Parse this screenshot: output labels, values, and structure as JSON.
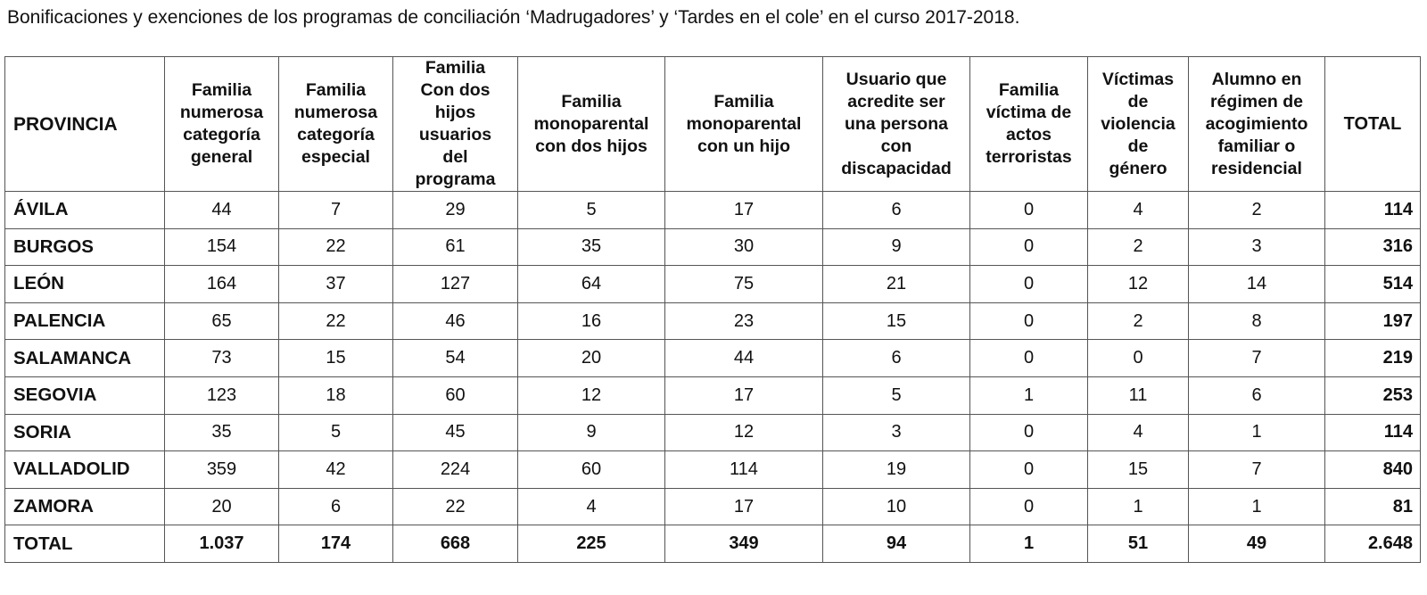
{
  "caption": "Bonificaciones y exenciones de los programas de conciliación ‘Madrugadores’ y ‘Tardes en el cole’ en el curso 2017-2018.",
  "table": {
    "headers": [
      [
        "PROVINCIA"
      ],
      [
        "Familia",
        "numerosa",
        "categoría",
        "general"
      ],
      [
        "Familia",
        "numerosa",
        "categoría",
        "especial"
      ],
      [
        "Familia",
        "Con dos",
        "hijos",
        "usuarios",
        "del",
        "programa"
      ],
      [
        "Familia",
        "monoparental",
        "con dos hijos"
      ],
      [
        "Familia",
        "monoparental",
        "con un hijo"
      ],
      [
        "Usuario que",
        "acredite ser",
        "una persona",
        "con",
        "discapacidad"
      ],
      [
        "Familia",
        "víctima de",
        "actos",
        "terroristas"
      ],
      [
        "Víctimas",
        "de",
        "violencia",
        "de",
        "género"
      ],
      [
        "Alumno en",
        "régimen de",
        "acogimiento",
        "familiar o",
        "residencial"
      ],
      [
        "TOTAL"
      ]
    ],
    "rows": [
      {
        "provincia": "ÁVILA",
        "values": [
          "44",
          "7",
          "29",
          "5",
          "17",
          "6",
          "0",
          "4",
          "2"
        ],
        "total": "114"
      },
      {
        "provincia": "BURGOS",
        "values": [
          "154",
          "22",
          "61",
          "35",
          "30",
          "9",
          "0",
          "2",
          "3"
        ],
        "total": "316"
      },
      {
        "provincia": "LEÓN",
        "values": [
          "164",
          "37",
          "127",
          "64",
          "75",
          "21",
          "0",
          "12",
          "14"
        ],
        "total": "514"
      },
      {
        "provincia": "PALENCIA",
        "values": [
          "65",
          "22",
          "46",
          "16",
          "23",
          "15",
          "0",
          "2",
          "8"
        ],
        "total": "197"
      },
      {
        "provincia": "SALAMANCA",
        "values": [
          "73",
          "15",
          "54",
          "20",
          "44",
          "6",
          "0",
          "0",
          "7"
        ],
        "total": "219"
      },
      {
        "provincia": "SEGOVIA",
        "values": [
          "123",
          "18",
          "60",
          "12",
          "17",
          "5",
          "1",
          "11",
          "6"
        ],
        "total": "253"
      },
      {
        "provincia": "SORIA",
        "values": [
          "35",
          "5",
          "45",
          "9",
          "12",
          "3",
          "0",
          "4",
          "1"
        ],
        "total": "114"
      },
      {
        "provincia": "VALLADOLID",
        "values": [
          "359",
          "42",
          "224",
          "60",
          "114",
          "19",
          "0",
          "15",
          "7"
        ],
        "total": "840"
      },
      {
        "provincia": "ZAMORA",
        "values": [
          "20",
          "6",
          "22",
          "4",
          "17",
          "10",
          "0",
          "1",
          "1"
        ],
        "total": "81"
      }
    ],
    "total_row": {
      "provincia": "TOTAL",
      "values": [
        "1.037",
        "174",
        "668",
        "225",
        "349",
        "94",
        "1",
        "51",
        "49"
      ],
      "total": "2.648"
    }
  }
}
